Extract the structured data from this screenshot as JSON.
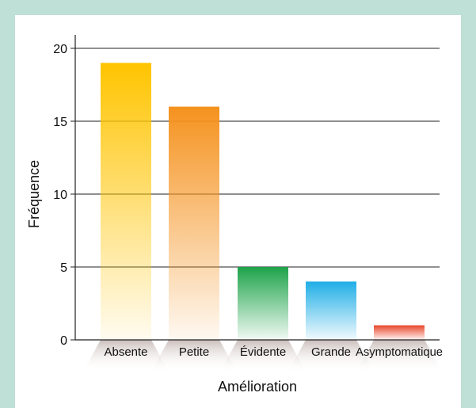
{
  "chart_data": {
    "type": "bar",
    "title": "",
    "xlabel": "Amélioration",
    "ylabel": "Fréquence",
    "categories": [
      "Absente",
      "Petite",
      "Évidente",
      "Grande",
      "Asymptomatique"
    ],
    "values": [
      19,
      16,
      5,
      4,
      1
    ],
    "ylim": [
      0,
      20
    ],
    "yticks": [
      0,
      5,
      10,
      15,
      20
    ],
    "grid": true,
    "colors": [
      "#FFC400",
      "#F5921E",
      "#1EA34A",
      "#20AEE6",
      "#E8472B"
    ]
  },
  "theme": {
    "frame_color": "#bfe0d6",
    "panel_color": "#ffffff"
  }
}
